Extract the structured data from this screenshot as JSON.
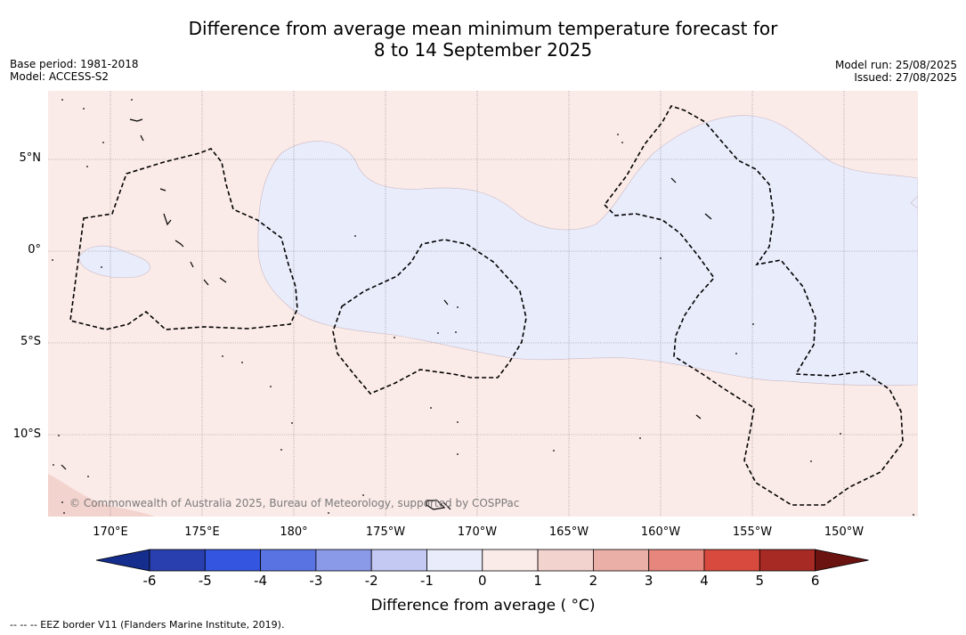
{
  "header": {
    "title_line1": "Difference from average mean minimum temperature forecast for",
    "title_line2": "8 to 14 September 2025",
    "base_period": "Base period: 1981-2018",
    "model": "Model: ACCESS-S2",
    "model_run": "Model run: 25/08/2025",
    "issued": "Issued: 27/08/2025"
  },
  "map": {
    "lat_ticks": [
      "5°N",
      "0°",
      "5°S",
      "10°S"
    ],
    "lon_ticks": [
      "170°E",
      "175°E",
      "180°",
      "175°W",
      "170°W",
      "165°W",
      "160°W",
      "155°W",
      "150°W"
    ],
    "copyright": "© Commonwealth of Australia 2025, Bureau of Meteorology, supported by COSPPac",
    "colors": {
      "light_warm": "#fbebe8",
      "light_cool": "#e9ecfb",
      "warm_2": "#f3d3ce"
    }
  },
  "colorbar": {
    "labels": [
      "-6",
      "-5",
      "-4",
      "-3",
      "-2",
      "-1",
      "0",
      "1",
      "2",
      "3",
      "4",
      "5",
      "6"
    ],
    "colors": [
      "#152d8c",
      "#2a3faf",
      "#3355e0",
      "#5a73e3",
      "#8a9ae8",
      "#c3c9f2",
      "#e9ecfb",
      "#fbebe8",
      "#f3d3ce",
      "#eaafa6",
      "#e6867c",
      "#d84a3e",
      "#a82a24",
      "#6b1310"
    ],
    "title": "Difference from average ( °C)"
  },
  "footnote": "--  --  -- EEZ border V11 (Flanders Marine Institute, 2019)."
}
